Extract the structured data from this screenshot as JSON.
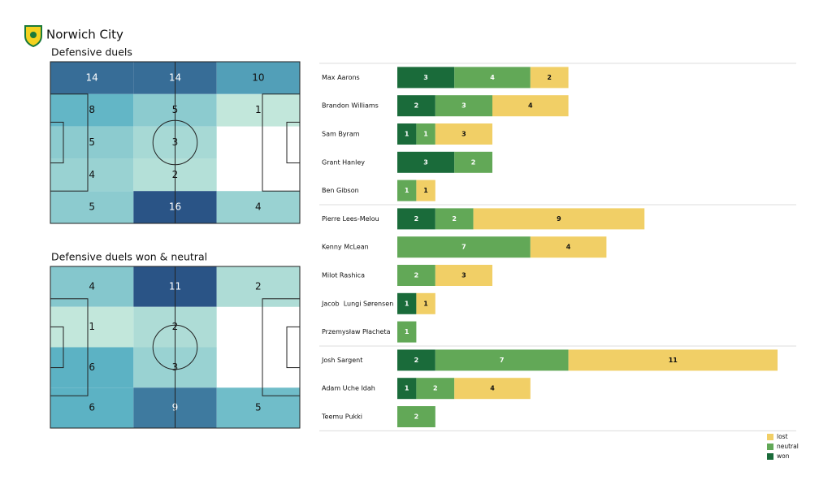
{
  "title": "Norwich City",
  "chart_data": [
    {
      "type": "heatmap",
      "title": "Defensive duels",
      "colorscale": [
        "#c2e7db",
        "#5cb2c4",
        "#2a5486"
      ],
      "rows": [
        [
          14,
          14,
          10
        ],
        [
          8,
          5,
          1
        ],
        [
          5,
          3,
          null
        ],
        [
          4,
          2,
          null
        ],
        [
          5,
          16,
          4
        ]
      ]
    },
    {
      "type": "heatmap",
      "title": "Defensive duels won & neutral",
      "colorscale": [
        "#c2e7db",
        "#5cb2c4",
        "#2a5486"
      ],
      "rows": [
        [
          4,
          11,
          2
        ],
        [
          1,
          2,
          null
        ],
        [
          6,
          3,
          null
        ],
        [
          6,
          9,
          5
        ]
      ]
    },
    {
      "type": "stacked_bar",
      "categories": [
        "Max Aarons",
        "Brandon Williams",
        "Sam Byram",
        "Grant Hanley",
        "Ben Gibson",
        "Pierre Lees-Melou",
        "Kenny McLean",
        "Milot Rashica",
        "Jacob  Lungi Sørensen",
        "Przemysław Płacheta",
        "Josh Sargent",
        "Adam Uche Idah",
        "Teemu Pukki"
      ],
      "groups": [
        5,
        5,
        3
      ],
      "series": [
        {
          "name": "won",
          "color": "#1a6b3a",
          "values": [
            3,
            2,
            1,
            3,
            null,
            2,
            null,
            null,
            1,
            null,
            2,
            1,
            null
          ]
        },
        {
          "name": "neutral",
          "color": "#62a857",
          "values": [
            4,
            3,
            1,
            2,
            1,
            2,
            7,
            2,
            null,
            1,
            7,
            2,
            2
          ]
        },
        {
          "name": "lost",
          "color": "#f1cf66",
          "values": [
            2,
            4,
            3,
            null,
            1,
            9,
            4,
            3,
            1,
            null,
            11,
            4,
            null
          ]
        }
      ],
      "legend": "lower right"
    }
  ]
}
